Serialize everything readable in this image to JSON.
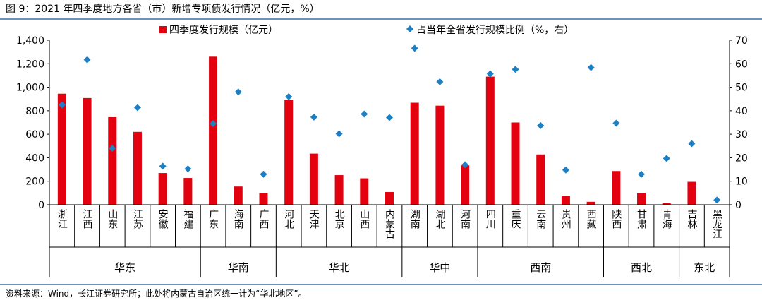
{
  "title": "图 9：2021 年四季度地方各省（市）新增专项债发行情况（亿元，%）",
  "source": "资料来源：Wind，长江证券研究所；此处将内蒙古自治区统一计为“华北地区”。",
  "colors": {
    "bar": "#E3000F",
    "point": "#1D7FC4",
    "rule": "#3F6FA8"
  },
  "chart_data": {
    "type": "bar",
    "categories": [
      "浙江",
      "江西",
      "山东",
      "江苏",
      "安徽",
      "福建",
      "广东",
      "海南",
      "广西",
      "河北",
      "天津",
      "北京",
      "山西",
      "内蒙古",
      "湖南",
      "湖北",
      "河南",
      "四川",
      "重庆",
      "云南",
      "贵州",
      "西藏",
      "陕西",
      "甘肃",
      "青海",
      "吉林",
      "黑龙江"
    ],
    "series": [
      {
        "name": "四季度发行规模（亿元）",
        "type": "bar",
        "axis": "left",
        "values": [
          945,
          908,
          745,
          620,
          270,
          228,
          1260,
          155,
          100,
          893,
          435,
          252,
          225,
          108,
          868,
          843,
          335,
          1090,
          700,
          428,
          78,
          25,
          287,
          100,
          12,
          195,
          2
        ]
      },
      {
        "name": "占当年全省发行规模比例（%，右）",
        "type": "scatter",
        "axis": "right",
        "values": [
          42.5,
          61.7,
          24.0,
          41.3,
          16.4,
          15.3,
          34.5,
          48.0,
          13.0,
          46.0,
          37.3,
          30.2,
          38.6,
          37.1,
          66.6,
          52.3,
          17.0,
          55.7,
          57.6,
          33.7,
          14.8,
          58.4,
          34.7,
          13.0,
          19.7,
          26.0,
          2.0
        ]
      }
    ],
    "regions": [
      {
        "name": "华东",
        "count": 6
      },
      {
        "name": "华南",
        "count": 3
      },
      {
        "name": "华北",
        "count": 5
      },
      {
        "name": "华中",
        "count": 3
      },
      {
        "name": "西南",
        "count": 5
      },
      {
        "name": "西北",
        "count": 3
      },
      {
        "name": "东北",
        "count": 2
      }
    ],
    "y_left": {
      "min": 0,
      "max": 1400,
      "ticks": [
        "0",
        "200",
        "400",
        "600",
        "800",
        "1,000",
        "1,200",
        "1,400"
      ]
    },
    "y_right": {
      "min": 0,
      "max": 70,
      "ticks": [
        "0",
        "10",
        "20",
        "30",
        "40",
        "50",
        "60",
        "70"
      ]
    },
    "legend_position": "top-center",
    "grid": false
  }
}
